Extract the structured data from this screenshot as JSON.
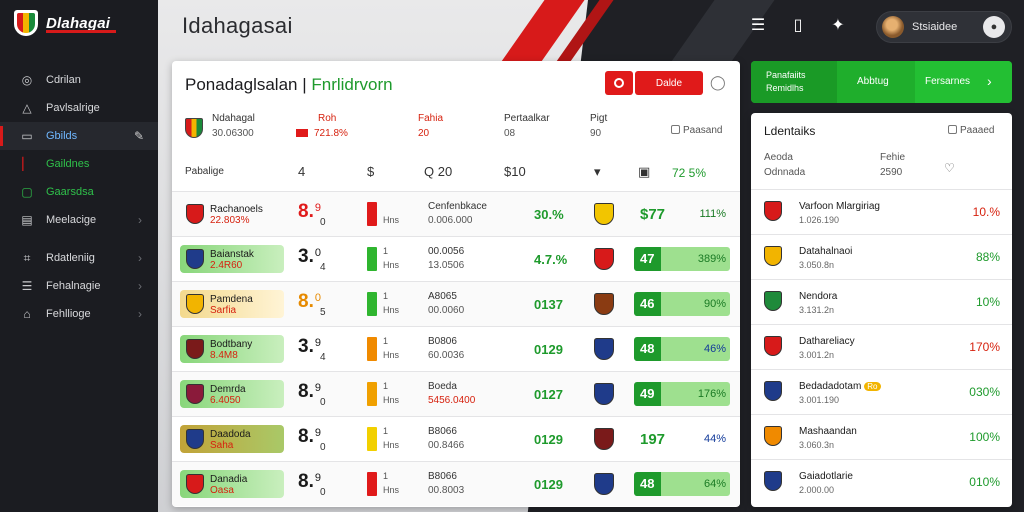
{
  "app": {
    "brand": "Dlahagai",
    "page_title": "Idahagasai"
  },
  "sidebar": {
    "items": [
      {
        "label": "Cdrilan",
        "icon": "globe-icon"
      },
      {
        "label": "Pavlsalrige",
        "icon": "triangle-icon"
      },
      {
        "label": "Gbilds",
        "icon": "monitor-icon",
        "active": true
      },
      {
        "label": "Gaildnes",
        "icon": "bar-icon"
      },
      {
        "label": "Gaarsdsa",
        "icon": "grid-icon"
      },
      {
        "label": "Meelacige",
        "icon": "doc-icon"
      },
      {
        "label": "Rdatleniig",
        "icon": "chart-icon"
      },
      {
        "label": "Fehalnagie",
        "icon": "list-icon"
      },
      {
        "label": "Fehllioge",
        "icon": "home-icon"
      }
    ]
  },
  "header": {
    "user_name": "Stsiaidee"
  },
  "main": {
    "title_dark": "Ponadaglsalan",
    "title_sep": " | ",
    "title_accent": "Fnrlidrvorn",
    "button_label": "Dalde",
    "summary": {
      "team": {
        "label": "Ndahagal",
        "value": "30.06300"
      },
      "col2": {
        "label": "Roh",
        "value": "721.8%"
      },
      "col3": {
        "label": "Fahia",
        "value": "20"
      },
      "col4": {
        "label": "Pertaalkar",
        "value": "08"
      },
      "col5": {
        "label": "Pigt",
        "value": "90"
      },
      "chip": "Paasand"
    },
    "header_row": {
      "label": "Pabalige",
      "c1": "4",
      "c2": "$",
      "c3": "Q 20",
      "c4": "$10",
      "c5": "72 5%"
    },
    "rows": [
      {
        "team": "Rachanoels",
        "sub": "22.803%",
        "team_bg": "none",
        "crest": "#d71a1a",
        "score": "8.",
        "score_sup": "9",
        "score_sub": "0",
        "score_color": "red",
        "bar_color": "#e01a1a",
        "bar_top": "",
        "bar_bottom": "Hns",
        "code_top": "Cenfenbkace",
        "code_bottom": "0.006.000",
        "code_red": false,
        "pct": "30.%",
        "opp": "#f2c500",
        "odds_plain": true,
        "odds1": "$77",
        "odds2": "111%",
        "odds2_blue": false
      },
      {
        "team": "Baianstak",
        "sub": "2.4R60",
        "team_bg": "g",
        "crest": "#1f3b8a",
        "score": "3.",
        "score_sup": "0",
        "score_sub": "4",
        "score_color": "",
        "bar_color": "#2fb52f",
        "bar_top": "1",
        "bar_bottom": "Hns",
        "code_top": "00.0056",
        "code_bottom": "13.0506",
        "code_red": false,
        "pct": "4.7.%",
        "opp": "#d71a1a",
        "odds_plain": false,
        "odds1": "47",
        "odds2": "389%",
        "odds2_blue": false
      },
      {
        "team": "Pamdena",
        "sub": "Sarfia",
        "team_bg": "y",
        "crest": "#f2b400",
        "score": "8.",
        "score_sup": "0",
        "score_sub": "5",
        "score_color": "orange",
        "bar_color": "#2fb52f",
        "bar_top": "1",
        "bar_bottom": "Hns",
        "code_top": "A8065",
        "code_bottom": "00.0060",
        "code_red": false,
        "pct": "0137",
        "opp": "#8a3b12",
        "odds_plain": false,
        "odds1": "46",
        "odds2": "90%",
        "odds2_blue": false
      },
      {
        "team": "Bodtbany",
        "sub": "8.4M8",
        "team_bg": "g",
        "crest": "#7a1a1a",
        "score": "3.",
        "score_sup": "9",
        "score_sub": "4",
        "score_color": "",
        "bar_color": "#f08a00",
        "bar_top": "1",
        "bar_bottom": "Hns",
        "code_top": "B0806",
        "code_bottom": "60.0036",
        "code_red": false,
        "pct": "0129",
        "opp": "#1f3b8a",
        "odds_plain": false,
        "odds1": "48",
        "odds2": "46%",
        "odds2_blue": true
      },
      {
        "team": "Demrda",
        "sub": "6.4050",
        "team_bg": "g",
        "crest": "#8a1a3a",
        "score": "8.",
        "score_sup": "9",
        "score_sub": "0",
        "score_color": "",
        "bar_color": "#f0a000",
        "bar_top": "1",
        "bar_bottom": "Hns",
        "code_top": "Boeda",
        "code_bottom": "5456.0400",
        "code_red": true,
        "pct": "0127",
        "opp": "#1f3b8a",
        "odds_plain": false,
        "odds1": "49",
        "odds2": "176%",
        "odds2_blue": false
      },
      {
        "team": "Daadoda",
        "sub": "Saha",
        "team_bg": "o",
        "crest": "#1f3b8a",
        "score": "8.",
        "score_sup": "9",
        "score_sub": "0",
        "score_color": "",
        "bar_color": "#f2d000",
        "bar_top": "1",
        "bar_bottom": "Hns",
        "code_top": "B8066",
        "code_bottom": "00.8466",
        "code_red": false,
        "pct": "0129",
        "opp": "#7a1a1a",
        "odds_plain": true,
        "odds1": "197",
        "odds2": "44%",
        "odds2_blue": true
      },
      {
        "team": "Danadia",
        "sub": "Oasa",
        "team_bg": "g",
        "crest": "#d71a1a",
        "score": "8.",
        "score_sup": "9",
        "score_sub": "0",
        "score_color": "",
        "bar_color": "#e01a1a",
        "bar_top": "1",
        "bar_bottom": "Hns",
        "code_top": "B8066",
        "code_bottom": "00.8003",
        "code_red": false,
        "pct": "0129",
        "opp": "#1f3b8a",
        "odds_plain": false,
        "odds1": "48",
        "odds2": "64%",
        "odds2_blue": false
      }
    ]
  },
  "promo": {
    "seg1_line1": "Panafaiits",
    "seg1_line2": "Remidlhs",
    "seg2": "Abbtug",
    "seg3": "Fersarnes"
  },
  "side": {
    "title": "Ldentaiks",
    "chip": "Paaaed",
    "meta1": {
      "label": "Aeoda",
      "value": "Odnnada"
    },
    "meta2": {
      "label": "Fehie",
      "value": "2590"
    },
    "rows": [
      {
        "name": "Varfoon Mlargiriag",
        "sub": "1.026.190",
        "pct": "10.%",
        "color": "red",
        "crest": "#d71a1a",
        "badge": ""
      },
      {
        "name": "Datahalnaoi",
        "sub": "3.050.8n",
        "pct": "88%",
        "color": "green",
        "crest": "#f2b400",
        "badge": ""
      },
      {
        "name": "Nendora",
        "sub": "3.131.2n",
        "pct": "10%",
        "color": "green",
        "crest": "#1f8a3a",
        "badge": ""
      },
      {
        "name": "Dathareliacy",
        "sub": "3.001.2n",
        "pct": "170%",
        "color": "red",
        "crest": "#d71a1a",
        "badge": ""
      },
      {
        "name": "Bedadadotam",
        "sub": "3.001.190",
        "pct": "030%",
        "color": "green",
        "crest": "#1f3b8a",
        "badge": "Ro"
      },
      {
        "name": "Mashaandan",
        "sub": "3.060.3n",
        "pct": "100%",
        "color": "green",
        "crest": "#f08a00",
        "badge": ""
      },
      {
        "name": "Gaiadotlarie",
        "sub": "2.000.00",
        "pct": "010%",
        "color": "green",
        "crest": "#1f3b8a",
        "badge": ""
      }
    ]
  }
}
